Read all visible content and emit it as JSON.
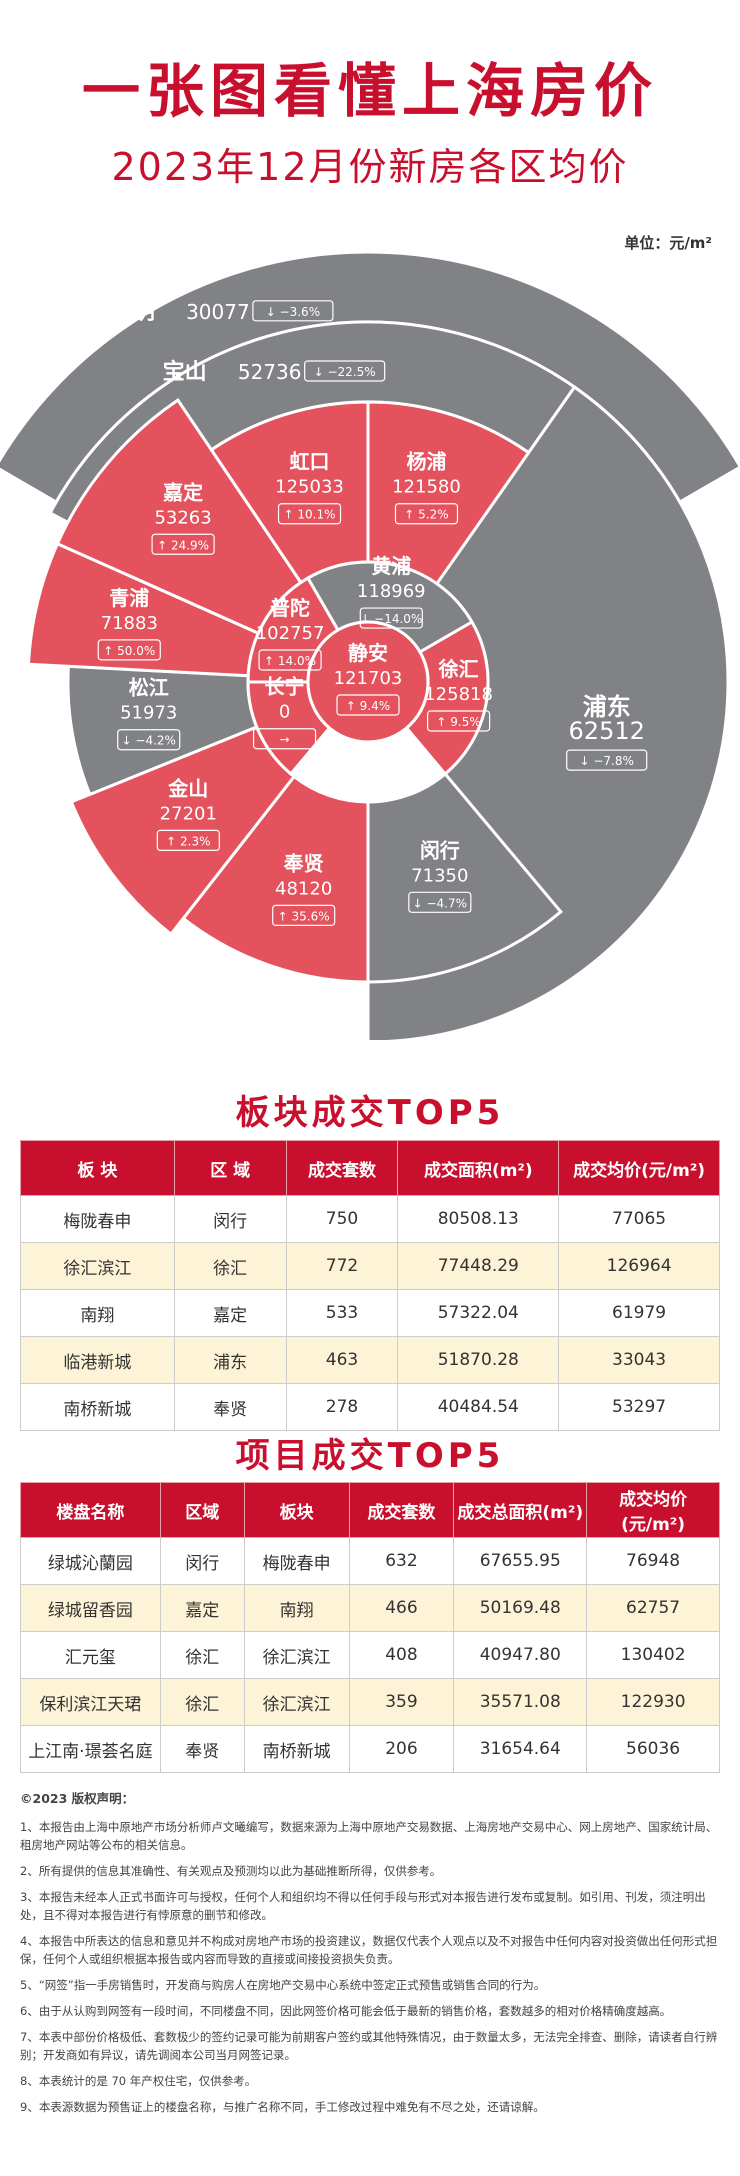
{
  "header": {
    "title": "一张图看懂上海房价",
    "subtitle": "2023年12月份新房各区均价",
    "unit": "单位：元/m²"
  },
  "colors": {
    "red": "#e4525e",
    "gray": "#808285",
    "accent": "#c8102e",
    "stripe": "#fdf3d6"
  },
  "chart_data": {
    "type": "sunburst",
    "districts": [
      {
        "name": "崇明",
        "price": 30077,
        "change": "↓ −3.6%",
        "color": "gray"
      },
      {
        "name": "宝山",
        "price": 52736,
        "change": "↓ −22.5%",
        "color": "gray"
      },
      {
        "name": "浦东",
        "price": 62512,
        "change": "↓ −7.8%",
        "color": "gray"
      },
      {
        "name": "奉贤",
        "price": 48120,
        "change": "↑ 35.6%",
        "color": "red"
      },
      {
        "name": "金山",
        "price": 27201,
        "change": "↑ 2.3%",
        "color": "red"
      },
      {
        "name": "松江",
        "price": 51973,
        "change": "↓ −4.2%",
        "color": "gray"
      },
      {
        "name": "青浦",
        "price": 71883,
        "change": "↑ 50.0%",
        "color": "red"
      },
      {
        "name": "嘉定",
        "price": 53263,
        "change": "↑ 24.9%",
        "color": "red"
      },
      {
        "name": "虹口",
        "price": 125033,
        "change": "↑ 10.1%",
        "color": "red"
      },
      {
        "name": "杨浦",
        "price": 121580,
        "change": "↑ 5.2%",
        "color": "red"
      },
      {
        "name": "闵行",
        "price": 71350,
        "change": "↓ −4.7%",
        "color": "gray"
      },
      {
        "name": "长宁",
        "price": 0,
        "change": "→",
        "color": "red"
      },
      {
        "name": "普陀",
        "price": 102757,
        "change": "↑ 14.0%",
        "color": "red"
      },
      {
        "name": "黄浦",
        "price": 118969,
        "change": "↓ −14.0%",
        "color": "gray"
      },
      {
        "name": "徐汇",
        "price": 125818,
        "change": "↑ 9.5%",
        "color": "red"
      },
      {
        "name": "静安",
        "price": 121703,
        "change": "↑ 9.4%",
        "color": "red"
      }
    ]
  },
  "section1": {
    "title": "板块成交TOP5",
    "headers": [
      "板 块",
      "区 域",
      "成交套数",
      "成交面积(m²)",
      "成交均价(元/m²)"
    ],
    "rows": [
      [
        "梅陇春申",
        "闵行",
        "750",
        "80508.13",
        "77065"
      ],
      [
        "徐汇滨江",
        "徐汇",
        "772",
        "77448.29",
        "126964"
      ],
      [
        "南翔",
        "嘉定",
        "533",
        "57322.04",
        "61979"
      ],
      [
        "临港新城",
        "浦东",
        "463",
        "51870.28",
        "33043"
      ],
      [
        "南桥新城",
        "奉贤",
        "278",
        "40484.54",
        "53297"
      ]
    ]
  },
  "section2": {
    "title": "项目成交TOP5",
    "headers": [
      "楼盘名称",
      "区域",
      "板块",
      "成交套数",
      "成交总面积(m²)",
      "成交均价(元/m²)"
    ],
    "rows": [
      [
        "绿城沁蘭园",
        "闵行",
        "梅陇春申",
        "632",
        "67655.95",
        "76948"
      ],
      [
        "绿城留香园",
        "嘉定",
        "南翔",
        "466",
        "50169.48",
        "62757"
      ],
      [
        "汇元玺",
        "徐汇",
        "徐汇滨江",
        "408",
        "40947.80",
        "130402"
      ],
      [
        "保利滨江天珺",
        "徐汇",
        "徐汇滨江",
        "359",
        "35571.08",
        "122930"
      ],
      [
        "上江南·璟荟名庭",
        "奉贤",
        "南桥新城",
        "206",
        "31654.64",
        "56036"
      ]
    ]
  },
  "disclaimer": {
    "copyright": "©2023 版权声明：",
    "items": [
      "1、本报告由上海中原地产市场分析师卢文曦编写，数据来源为上海中原地产交易数据、上海房地产交易中心、网上房地产、国家统计局、租房地产网站等公布的相关信息。",
      "2、所有提供的信息其准确性、有关观点及预测均以此为基础推断所得，仅供参考。",
      "3、本报告未经本人正式书面许可与授权，任何个人和组织均不得以任何手段与形式对本报告进行发布或复制。如引用、刊发，须注明出处，且不得对本报告进行有悖原意的删节和修改。",
      "4、本报告中所表达的信息和意见并不构成对房地产市场的投资建议，数据仅代表个人观点以及不对报告中任何内容对投资做出任何形式担保，任何个人或组织根据本报告或内容而导致的直接或间接投资损失负责。",
      "5、“网签”指一手房销售时，开发商与购房人在房地产交易中心系统中签定正式预售或销售合同的行为。",
      "6、由于从认购到网签有一段时间，不同楼盘不同，因此网签价格可能会低于最新的销售价格，套数越多的相对价格精确度越高。",
      "7、本表中部份价格极低、套数极少的签约记录可能为前期客户签约或其他特殊情况，由于数量太多，无法完全排查、删除，请读者自行辨别；开发商如有异议，请先调阅本公司当月网签记录。",
      "8、本表统计的是 70 年产权住宅，仅供参考。",
      "9、本表源数据为预售证上的楼盘名称，与推广名称不同，手工修改过程中难免有不尽之处，还请谅解。"
    ]
  }
}
